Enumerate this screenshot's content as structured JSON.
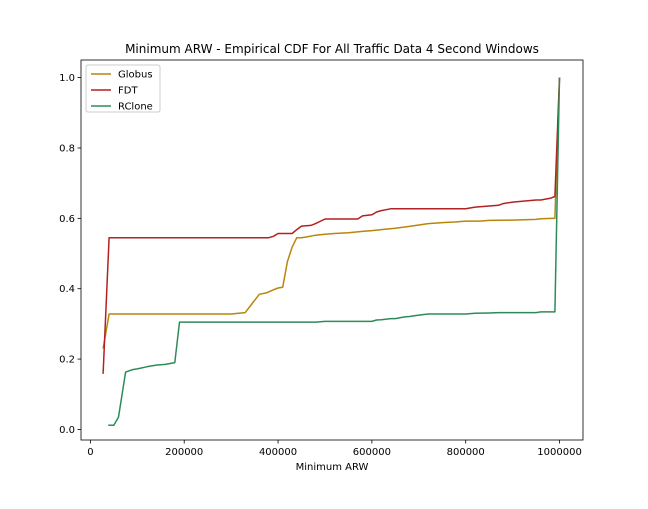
{
  "chart_data": {
    "type": "line",
    "title": "Minimum ARW - Empirical CDF For All Traffic Data 4 Second Windows",
    "xlabel": "Minimum ARW",
    "ylabel": "",
    "xlim": [
      -20000,
      1050000
    ],
    "ylim": [
      -0.03,
      1.05
    ],
    "x_ticks": [
      0,
      200000,
      400000,
      600000,
      800000,
      1000000
    ],
    "x_tick_labels": [
      "0",
      "200000",
      "400000",
      "600000",
      "800000",
      "1000000"
    ],
    "y_ticks": [
      0.0,
      0.2,
      0.4,
      0.6,
      0.8,
      1.0
    ],
    "y_tick_labels": [
      "0.0",
      "0.2",
      "0.4",
      "0.6",
      "0.8",
      "1.0"
    ],
    "grid": false,
    "legend_position": "top-left",
    "series": [
      {
        "name": "Globus",
        "color": "#b8860b",
        "x": [
          27000,
          40000,
          60000,
          100000,
          150000,
          200000,
          250000,
          300000,
          330000,
          345000,
          360000,
          375000,
          390000,
          400000,
          410000,
          420000,
          430000,
          440000,
          450000,
          460000,
          480000,
          500000,
          520000,
          550000,
          580000,
          600000,
          620000,
          650000,
          680000,
          700000,
          720000,
          750000,
          780000,
          800000,
          830000,
          850000,
          900000,
          950000,
          960000,
          990000,
          1000000
        ],
        "y": [
          0.23,
          0.328,
          0.328,
          0.328,
          0.328,
          0.328,
          0.328,
          0.328,
          0.332,
          0.358,
          0.384,
          0.388,
          0.397,
          0.402,
          0.404,
          0.477,
          0.518,
          0.545,
          0.545,
          0.547,
          0.552,
          0.555,
          0.557,
          0.559,
          0.563,
          0.565,
          0.568,
          0.572,
          0.577,
          0.581,
          0.585,
          0.588,
          0.59,
          0.592,
          0.592,
          0.594,
          0.595,
          0.597,
          0.599,
          0.6,
          1.0
        ]
      },
      {
        "name": "FDT",
        "color": "#b22222",
        "x": [
          27000,
          40000,
          100000,
          200000,
          300000,
          380000,
          390000,
          400000,
          420000,
          430000,
          440000,
          450000,
          470000,
          480000,
          500000,
          520000,
          550000,
          570000,
          580000,
          600000,
          610000,
          620000,
          640000,
          650000,
          700000,
          750000,
          800000,
          820000,
          850000,
          870000,
          880000,
          900000,
          950000,
          960000,
          980000,
          990000,
          1000000
        ],
        "y": [
          0.158,
          0.545,
          0.545,
          0.545,
          0.545,
          0.545,
          0.549,
          0.557,
          0.557,
          0.557,
          0.568,
          0.578,
          0.58,
          0.585,
          0.598,
          0.598,
          0.598,
          0.598,
          0.607,
          0.61,
          0.618,
          0.622,
          0.627,
          0.627,
          0.627,
          0.627,
          0.627,
          0.632,
          0.635,
          0.637,
          0.642,
          0.646,
          0.652,
          0.652,
          0.657,
          0.662,
          1.0
        ]
      },
      {
        "name": "RClone",
        "color": "#2e8b57",
        "x": [
          38000,
          50000,
          60000,
          75000,
          90000,
          100000,
          120000,
          140000,
          160000,
          180000,
          190000,
          200000,
          300000,
          400000,
          480000,
          500000,
          550000,
          600000,
          610000,
          620000,
          640000,
          650000,
          670000,
          680000,
          700000,
          720000,
          750000,
          800000,
          820000,
          850000,
          870000,
          900000,
          950000,
          960000,
          990000,
          1000000
        ],
        "y": [
          0.012,
          0.012,
          0.035,
          0.163,
          0.17,
          0.172,
          0.178,
          0.183,
          0.185,
          0.19,
          0.305,
          0.305,
          0.305,
          0.305,
          0.305,
          0.307,
          0.307,
          0.307,
          0.311,
          0.312,
          0.315,
          0.315,
          0.32,
          0.321,
          0.325,
          0.328,
          0.328,
          0.328,
          0.33,
          0.331,
          0.332,
          0.332,
          0.332,
          0.334,
          0.334,
          1.0
        ]
      }
    ]
  }
}
